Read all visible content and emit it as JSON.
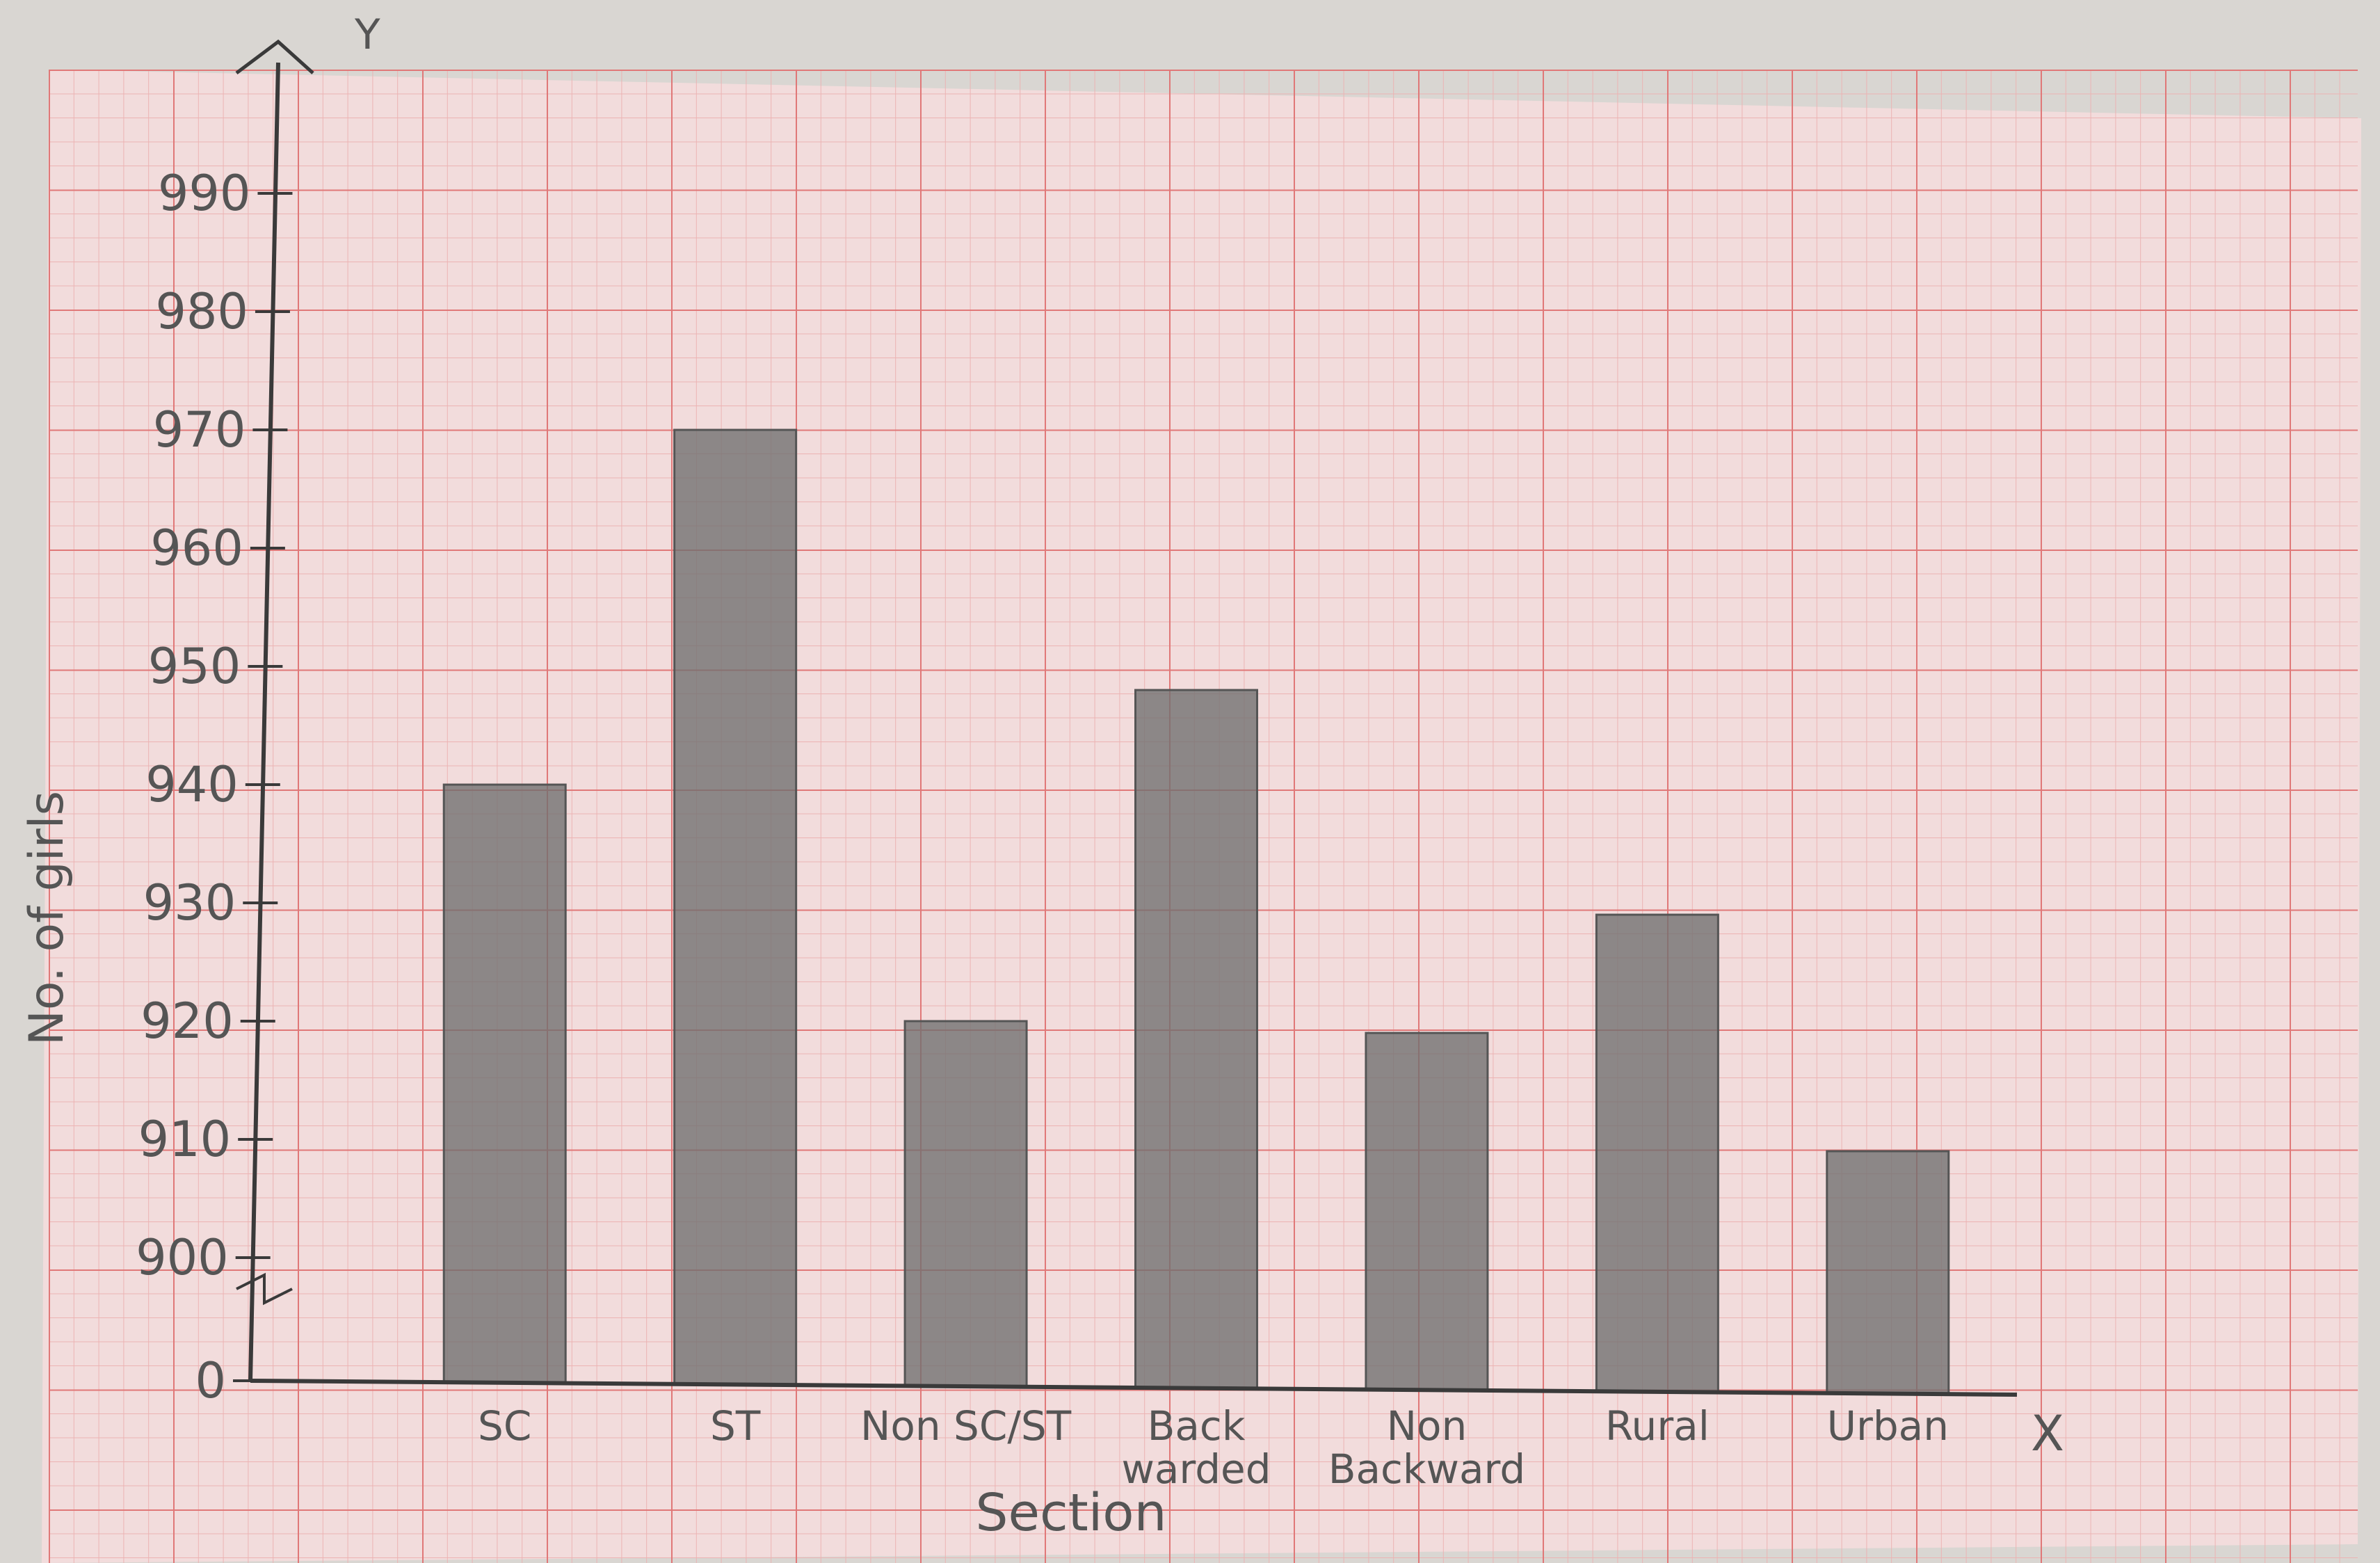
{
  "colors": {
    "background": "#d9d6d2",
    "paper": "#f2dcdc",
    "grid_minor": "#ecb3b3",
    "grid_major": "#e07878",
    "bar_fill": "#6f6f6f",
    "ink": "#3a3a3a"
  },
  "chart_data": {
    "type": "bar",
    "title": "",
    "xlabel": "Section",
    "ylabel": "No. of girls",
    "x_axis_letter": "X",
    "y_axis_letter": "Y",
    "categories": [
      "SC",
      "ST",
      "Non SC/ST",
      "Back warded",
      "Non Backward",
      "Rural",
      "Urban"
    ],
    "values": [
      940,
      970,
      920,
      948,
      919,
      929,
      909
    ],
    "ylim": [
      900,
      990
    ],
    "axis_break": true,
    "y_ticks": [
      {
        "value": 0,
        "label": "0"
      },
      {
        "value": 900,
        "label": "900"
      },
      {
        "value": 910,
        "label": "910"
      },
      {
        "value": 920,
        "label": "920"
      },
      {
        "value": 930,
        "label": "930"
      },
      {
        "value": 940,
        "label": "940"
      },
      {
        "value": 950,
        "label": "950"
      },
      {
        "value": 960,
        "label": "960"
      },
      {
        "value": 970,
        "label": "970"
      },
      {
        "value": 980,
        "label": "980"
      },
      {
        "value": 990,
        "label": "990"
      }
    ],
    "grid": true,
    "legend": "none"
  }
}
